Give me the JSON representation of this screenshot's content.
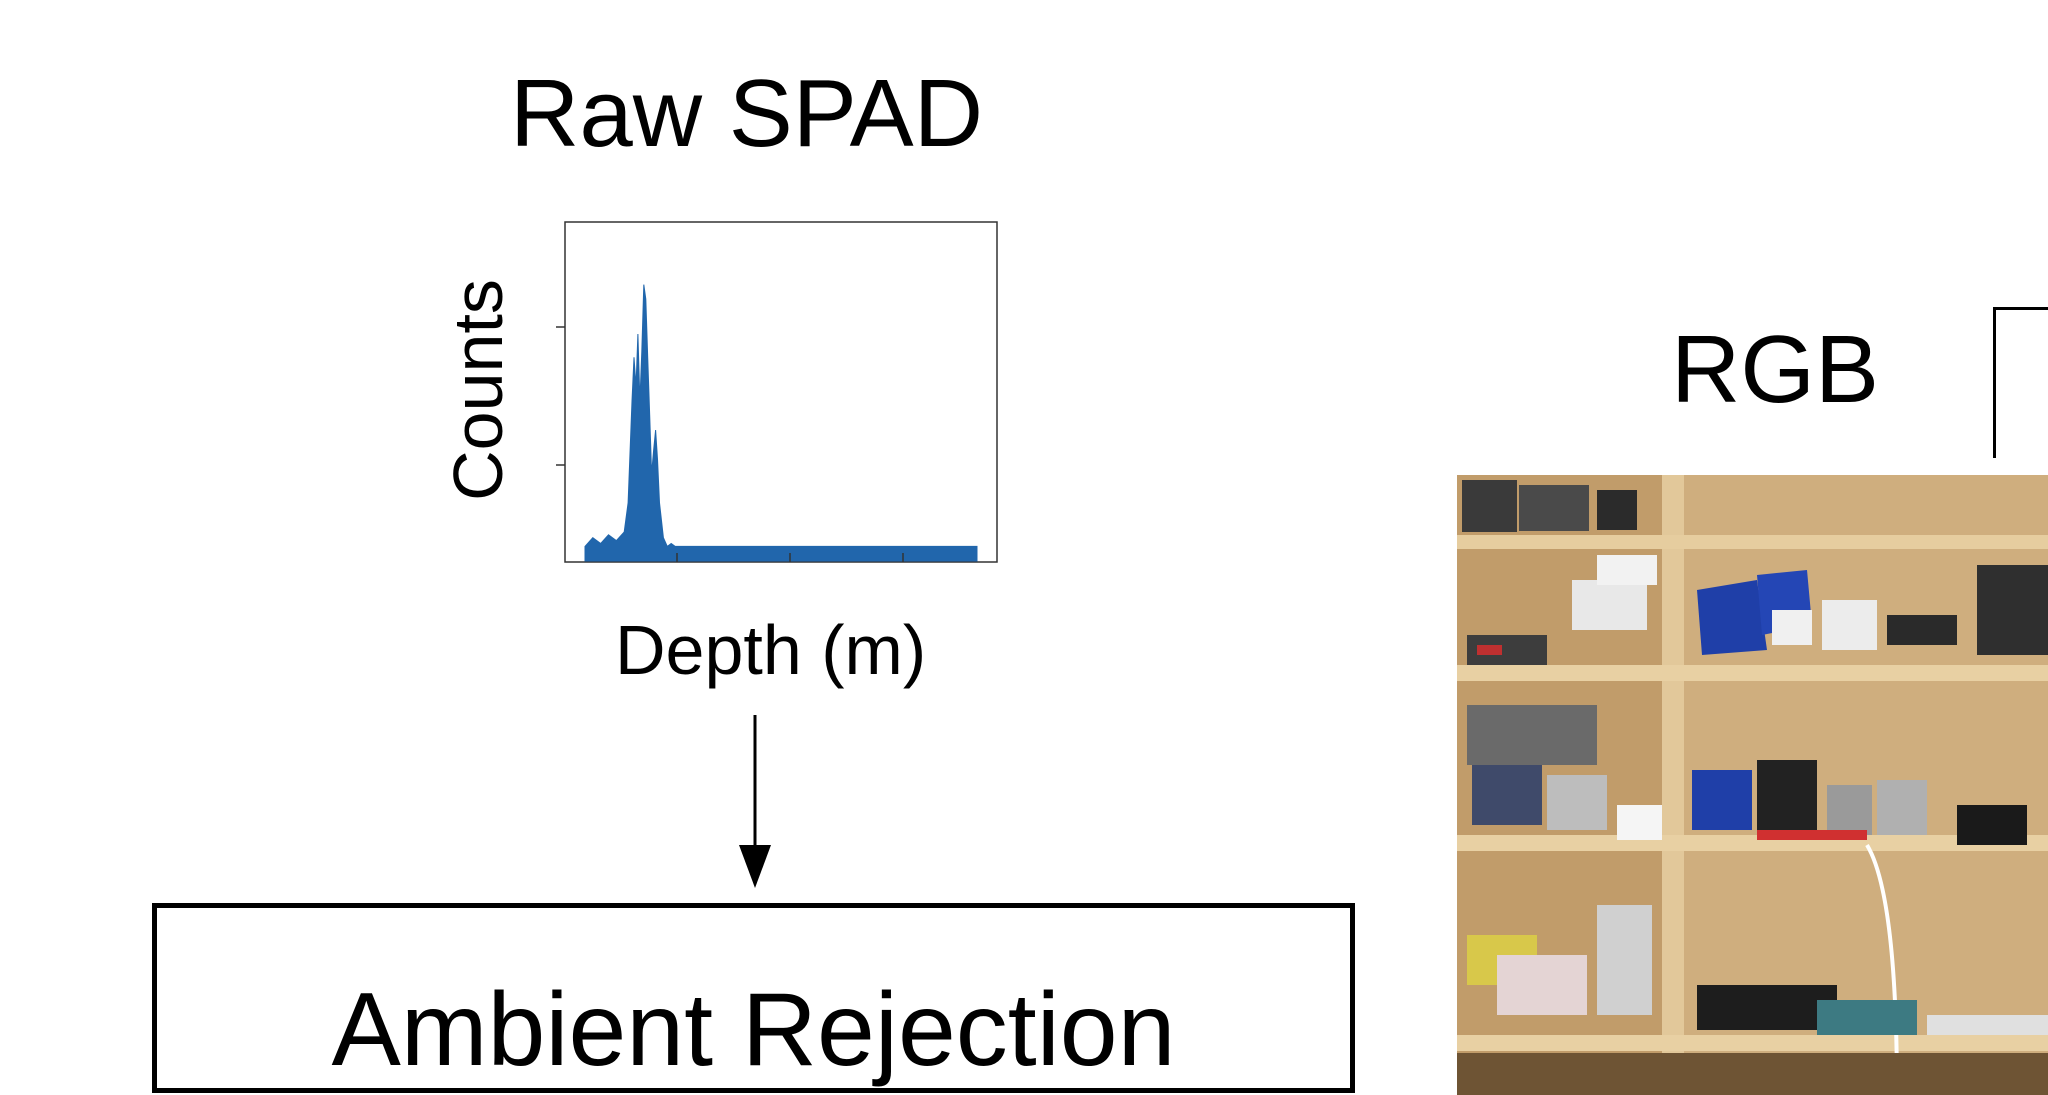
{
  "titles": {
    "raw_spad": "Raw SPAD",
    "rgb": "RGB"
  },
  "chart_data": {
    "type": "area",
    "xlabel": "Depth (m)",
    "ylabel": "Counts",
    "grid": false,
    "legend": "none",
    "color": "#2166ac",
    "x": [
      0,
      0.02,
      0.04,
      0.06,
      0.08,
      0.1,
      0.11,
      0.12,
      0.125,
      0.13,
      0.135,
      0.14,
      0.145,
      0.15,
      0.155,
      0.16,
      0.165,
      0.17,
      0.175,
      0.18,
      0.185,
      0.19,
      0.2,
      0.21,
      0.22,
      0.23,
      0.25,
      0.3,
      0.4,
      0.5,
      0.6,
      0.7,
      0.8,
      0.9,
      1.0
    ],
    "y": [
      0.05,
      0.08,
      0.06,
      0.09,
      0.07,
      0.1,
      0.2,
      0.55,
      0.7,
      0.6,
      0.78,
      0.55,
      0.72,
      0.95,
      0.9,
      0.7,
      0.5,
      0.3,
      0.38,
      0.45,
      0.35,
      0.2,
      0.08,
      0.05,
      0.06,
      0.05,
      0.05,
      0.05,
      0.05,
      0.05,
      0.05,
      0.05,
      0.05,
      0.05,
      0.05
    ]
  },
  "process_box": {
    "label": "Ambient Rejection"
  },
  "photo": {
    "icon": "shelves-photo"
  }
}
